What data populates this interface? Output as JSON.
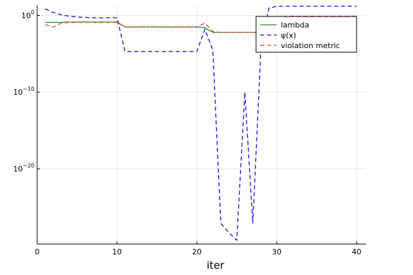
{
  "chart_data": {
    "type": "line",
    "xlabel": "iter",
    "ylabel": "",
    "title": "",
    "xlim": [
      0,
      41.2
    ],
    "xticks": [
      0,
      10,
      20,
      30,
      40
    ],
    "ylim_log10": [
      -29.8,
      1.3
    ],
    "yscale": "log",
    "yticks": [
      {
        "exp": 0,
        "label": "10",
        "sup": "0"
      },
      {
        "exp": -10,
        "label": "10",
        "sup": "−10"
      },
      {
        "exp": -20,
        "label": "10",
        "sup": "−20"
      }
    ],
    "grid": true,
    "legend_position": "top-right",
    "x": [
      1,
      2,
      3,
      4,
      5,
      6,
      7,
      8,
      9,
      10,
      11,
      12,
      13,
      14,
      15,
      16,
      17,
      18,
      19,
      20,
      21,
      22,
      23,
      24,
      25,
      26,
      27,
      28,
      29,
      30,
      31,
      32,
      33,
      34,
      35,
      36,
      37,
      38,
      39,
      40
    ],
    "series": [
      {
        "name": "lambda",
        "color": "#2e8b2e",
        "dash": "",
        "log10_values": [
          -0.9,
          -0.9,
          -0.9,
          -0.85,
          -0.85,
          -0.85,
          -0.85,
          -0.85,
          -0.85,
          -0.85,
          -1.5,
          -1.5,
          -1.5,
          -1.5,
          -1.5,
          -1.5,
          -1.5,
          -1.5,
          -1.5,
          -1.5,
          -1.6,
          -2.2,
          -2.2,
          -2.2,
          -2.2,
          -2.2,
          -2.2,
          -2.2,
          -2.2,
          -0.5,
          -0.5,
          -0.5,
          -0.5,
          -0.5,
          -0.5,
          -0.5,
          -0.5,
          -0.5,
          -0.5,
          -0.5
        ]
      },
      {
        "name": "ψ(x)",
        "color": "#1010e0",
        "dash": "6,4",
        "log10_values": [
          0.85,
          0.4,
          0.1,
          -0.1,
          -0.2,
          -0.25,
          -0.3,
          -0.3,
          -0.3,
          -0.3,
          -4.7,
          -4.7,
          -4.7,
          -4.7,
          -4.7,
          -4.7,
          -4.7,
          -4.7,
          -4.7,
          -4.7,
          -1.8,
          -4.5,
          -27.1,
          -28.3,
          -29.3,
          -10.0,
          -27.1,
          -4.5,
          0.95,
          1.2,
          1.2,
          1.2,
          1.2,
          1.2,
          1.2,
          1.2,
          1.2,
          1.2,
          1.2,
          1.2
        ]
      },
      {
        "name": "violation metric",
        "color": "#e8403a",
        "dash": "6,4",
        "log10_values": [
          -1.2,
          -1.5,
          -1.0,
          -0.9,
          -0.9,
          -0.9,
          -0.9,
          -0.9,
          -0.9,
          -0.9,
          -1.5,
          -1.5,
          -1.5,
          -1.5,
          -1.5,
          -1.5,
          -1.5,
          -1.5,
          -1.5,
          -1.5,
          -1.0,
          -2.1,
          -2.2,
          -2.2,
          -2.2,
          -2.2,
          -2.2,
          -2.2,
          -2.2,
          -2.2,
          -0.1,
          -0.1,
          -0.1,
          -0.1,
          -0.1,
          -0.1,
          -0.1,
          -0.1,
          -0.1,
          -0.1
        ]
      }
    ]
  }
}
